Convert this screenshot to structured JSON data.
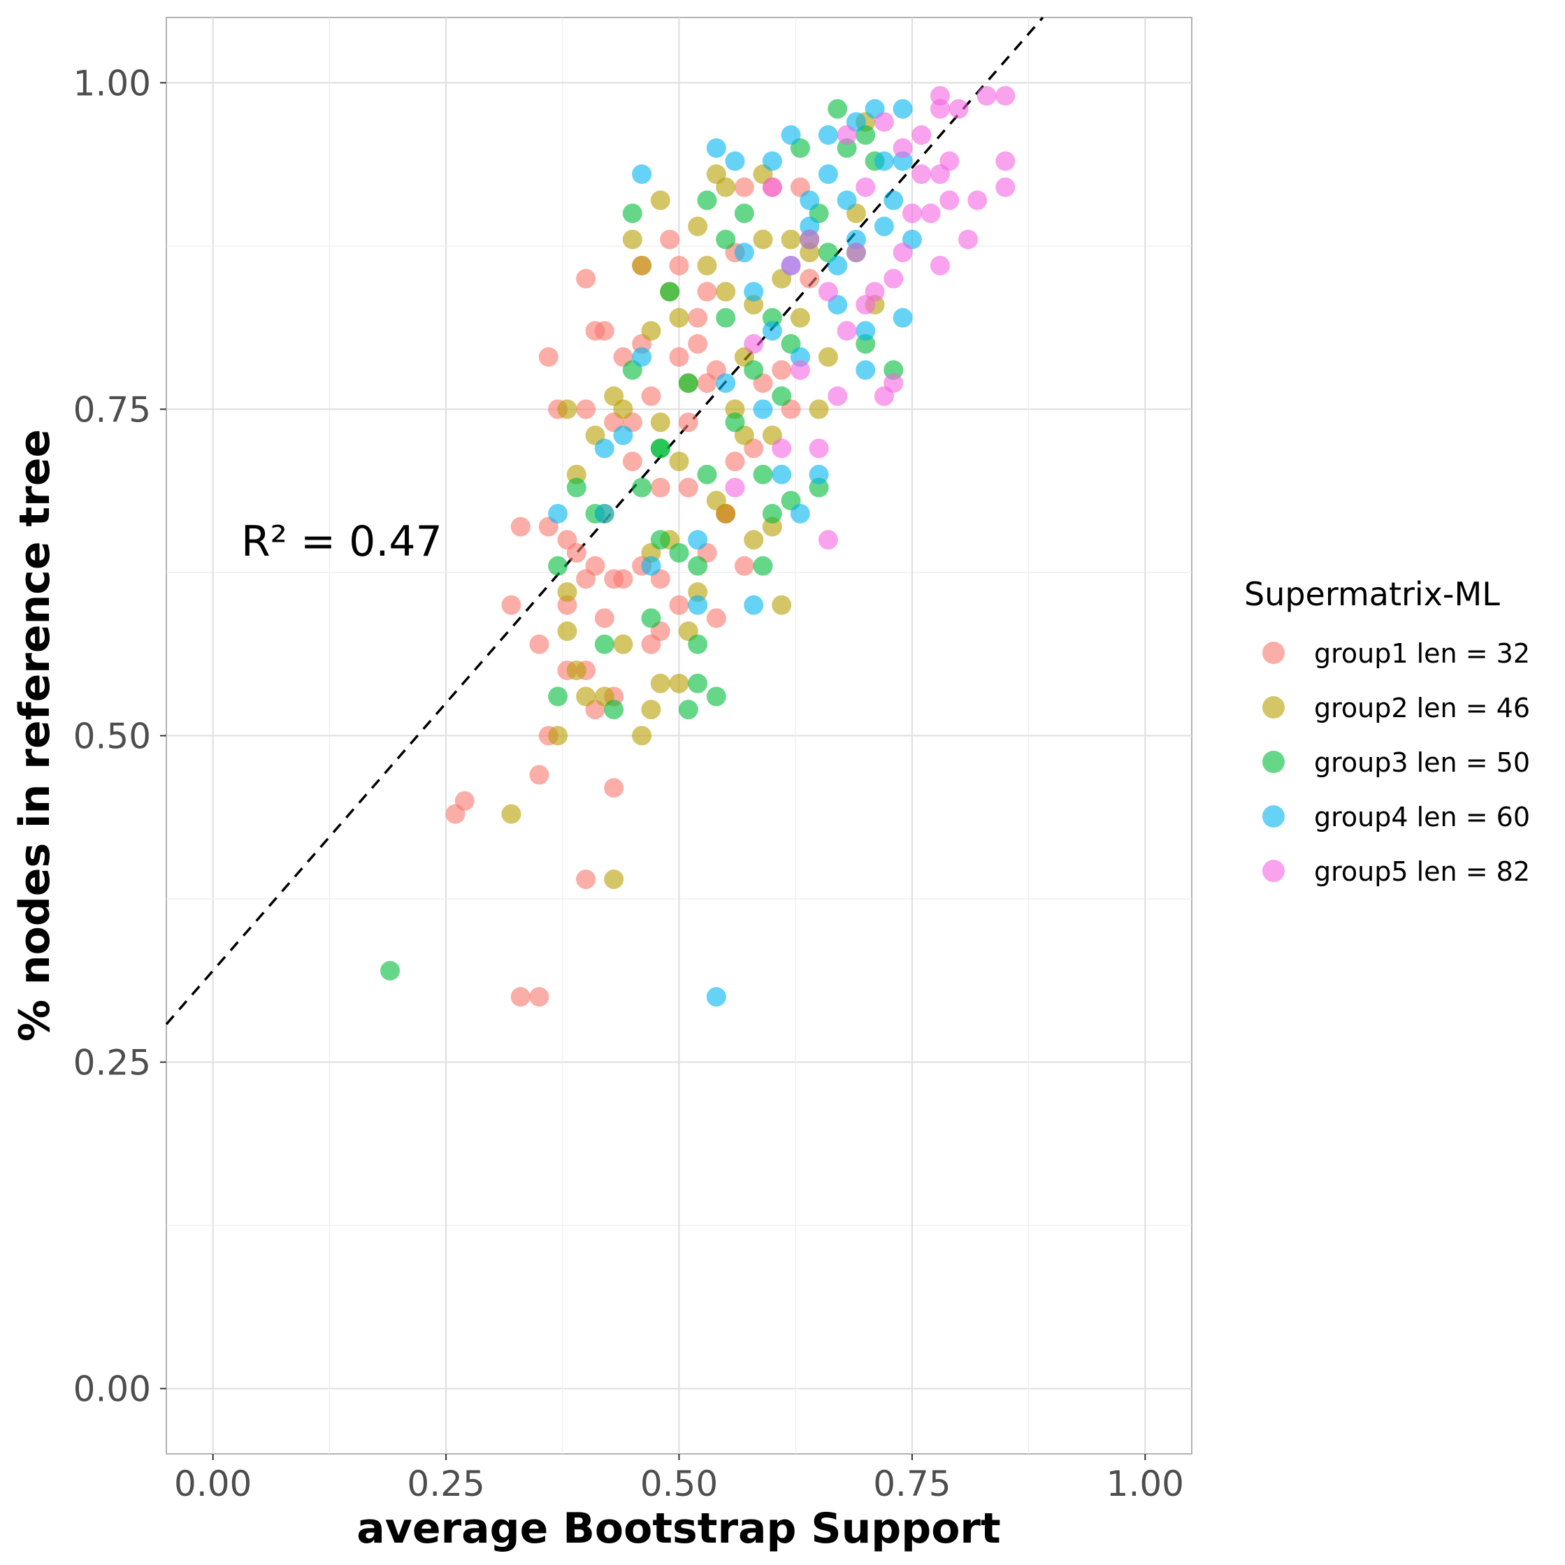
{
  "chart_data": {
    "type": "scatter",
    "xlabel": "average Bootstrap Support",
    "ylabel": "% nodes in reference tree",
    "xlim": [
      -0.05,
      1.05
    ],
    "ylim": [
      -0.05,
      1.05
    ],
    "x_ticks": [
      "0.00",
      "0.25",
      "0.50",
      "0.75",
      "1.00"
    ],
    "y_ticks": [
      "0.00",
      "0.25",
      "0.50",
      "0.75",
      "1.00"
    ],
    "grid": true,
    "legend_title": "Supermatrix-ML",
    "legend_position": "right",
    "annotation": "R² = 0.47",
    "reference_line": {
      "style": "dashed",
      "intercept": 0.32,
      "slope": 0.82
    },
    "series": [
      {
        "name": "group1 len = 32",
        "color": "#F8766D",
        "points": [
          [
            0.26,
            0.44
          ],
          [
            0.27,
            0.45
          ],
          [
            0.33,
            0.3
          ],
          [
            0.35,
            0.3
          ],
          [
            0.35,
            0.47
          ],
          [
            0.36,
            0.5
          ],
          [
            0.4,
            0.39
          ],
          [
            0.43,
            0.46
          ],
          [
            0.32,
            0.6
          ],
          [
            0.35,
            0.57
          ],
          [
            0.38,
            0.55
          ],
          [
            0.38,
            0.6
          ],
          [
            0.4,
            0.55
          ],
          [
            0.41,
            0.52
          ],
          [
            0.42,
            0.59
          ],
          [
            0.43,
            0.53
          ],
          [
            0.33,
            0.66
          ],
          [
            0.36,
            0.66
          ],
          [
            0.38,
            0.65
          ],
          [
            0.39,
            0.64
          ],
          [
            0.4,
            0.62
          ],
          [
            0.41,
            0.63
          ],
          [
            0.43,
            0.62
          ],
          [
            0.44,
            0.62
          ],
          [
            0.36,
            0.79
          ],
          [
            0.37,
            0.75
          ],
          [
            0.4,
            0.75
          ],
          [
            0.41,
            0.81
          ],
          [
            0.42,
            0.81
          ],
          [
            0.4,
            0.85
          ],
          [
            0.43,
            0.74
          ],
          [
            0.44,
            0.79
          ],
          [
            0.45,
            0.71
          ],
          [
            0.45,
            0.74
          ],
          [
            0.46,
            0.8
          ],
          [
            0.46,
            0.86
          ],
          [
            0.47,
            0.76
          ],
          [
            0.48,
            0.69
          ],
          [
            0.48,
            0.62
          ],
          [
            0.49,
            0.88
          ],
          [
            0.47,
            0.57
          ],
          [
            0.5,
            0.6
          ],
          [
            0.5,
            0.79
          ],
          [
            0.51,
            0.69
          ],
          [
            0.51,
            0.74
          ],
          [
            0.52,
            0.82
          ],
          [
            0.53,
            0.64
          ],
          [
            0.54,
            0.78
          ],
          [
            0.54,
            0.59
          ],
          [
            0.55,
            0.67
          ],
          [
            0.56,
            0.71
          ],
          [
            0.57,
            0.63
          ],
          [
            0.58,
            0.72
          ],
          [
            0.59,
            0.77
          ],
          [
            0.6,
            0.92
          ],
          [
            0.61,
            0.78
          ],
          [
            0.62,
            0.75
          ],
          [
            0.63,
            0.92
          ],
          [
            0.64,
            0.85
          ],
          [
            0.52,
            0.8
          ],
          [
            0.53,
            0.84
          ],
          [
            0.56,
            0.87
          ],
          [
            0.57,
            0.92
          ],
          [
            0.48,
            0.58
          ],
          [
            0.46,
            0.63
          ],
          [
            0.5,
            0.86
          ],
          [
            0.53,
            0.77
          ],
          [
            0.55,
            0.67
          ]
        ]
      },
      {
        "name": "group2 len = 46",
        "color": "#B79F00",
        "points": [
          [
            0.32,
            0.44
          ],
          [
            0.43,
            0.39
          ],
          [
            0.37,
            0.5
          ],
          [
            0.38,
            0.58
          ],
          [
            0.39,
            0.55
          ],
          [
            0.4,
            0.53
          ],
          [
            0.42,
            0.53
          ],
          [
            0.44,
            0.57
          ],
          [
            0.46,
            0.5
          ],
          [
            0.47,
            0.52
          ],
          [
            0.48,
            0.54
          ],
          [
            0.5,
            0.54
          ],
          [
            0.38,
            0.61
          ],
          [
            0.39,
            0.7
          ],
          [
            0.38,
            0.75
          ],
          [
            0.41,
            0.73
          ],
          [
            0.42,
            0.67
          ],
          [
            0.43,
            0.76
          ],
          [
            0.44,
            0.75
          ],
          [
            0.45,
            0.88
          ],
          [
            0.46,
            0.86
          ],
          [
            0.47,
            0.81
          ],
          [
            0.48,
            0.91
          ],
          [
            0.48,
            0.74
          ],
          [
            0.49,
            0.84
          ],
          [
            0.5,
            0.71
          ],
          [
            0.5,
            0.82
          ],
          [
            0.51,
            0.77
          ],
          [
            0.52,
            0.89
          ],
          [
            0.53,
            0.86
          ],
          [
            0.54,
            0.93
          ],
          [
            0.55,
            0.92
          ],
          [
            0.55,
            0.67
          ],
          [
            0.56,
            0.75
          ],
          [
            0.57,
            0.79
          ],
          [
            0.58,
            0.83
          ],
          [
            0.58,
            0.65
          ],
          [
            0.59,
            0.88
          ],
          [
            0.6,
            0.73
          ],
          [
            0.6,
            0.66
          ],
          [
            0.61,
            0.6
          ],
          [
            0.61,
            0.85
          ],
          [
            0.62,
            0.88
          ],
          [
            0.63,
            0.82
          ],
          [
            0.64,
            0.87
          ],
          [
            0.65,
            0.75
          ],
          [
            0.66,
            0.79
          ],
          [
            0.69,
            0.9
          ],
          [
            0.7,
            0.97
          ],
          [
            0.71,
            0.83
          ],
          [
            0.47,
            0.64
          ],
          [
            0.49,
            0.65
          ],
          [
            0.51,
            0.58
          ],
          [
            0.52,
            0.61
          ],
          [
            0.54,
            0.68
          ],
          [
            0.55,
            0.84
          ],
          [
            0.57,
            0.73
          ],
          [
            0.59,
            0.93
          ]
        ]
      },
      {
        "name": "group3 len = 50",
        "color": "#00BA38",
        "points": [
          [
            0.19,
            0.32
          ],
          [
            0.37,
            0.53
          ],
          [
            0.37,
            0.63
          ],
          [
            0.39,
            0.69
          ],
          [
            0.41,
            0.67
          ],
          [
            0.42,
            0.57
          ],
          [
            0.43,
            0.52
          ],
          [
            0.45,
            0.78
          ],
          [
            0.46,
            0.69
          ],
          [
            0.47,
            0.59
          ],
          [
            0.48,
            0.65
          ],
          [
            0.48,
            0.72
          ],
          [
            0.49,
            0.84
          ],
          [
            0.5,
            0.64
          ],
          [
            0.51,
            0.52
          ],
          [
            0.52,
            0.54
          ],
          [
            0.52,
            0.63
          ],
          [
            0.52,
            0.57
          ],
          [
            0.53,
            0.7
          ],
          [
            0.53,
            0.91
          ],
          [
            0.54,
            0.53
          ],
          [
            0.55,
            0.82
          ],
          [
            0.56,
            0.74
          ],
          [
            0.57,
            0.9
          ],
          [
            0.58,
            0.78
          ],
          [
            0.59,
            0.7
          ],
          [
            0.59,
            0.63
          ],
          [
            0.6,
            0.67
          ],
          [
            0.6,
            0.82
          ],
          [
            0.61,
            0.76
          ],
          [
            0.62,
            0.68
          ],
          [
            0.62,
            0.8
          ],
          [
            0.63,
            0.95
          ],
          [
            0.64,
            0.88
          ],
          [
            0.65,
            0.69
          ],
          [
            0.65,
            0.9
          ],
          [
            0.66,
            0.87
          ],
          [
            0.67,
            0.98
          ],
          [
            0.68,
            0.95
          ],
          [
            0.69,
            0.87
          ],
          [
            0.7,
            0.96
          ],
          [
            0.7,
            0.8
          ],
          [
            0.71,
            0.94
          ],
          [
            0.73,
            0.78
          ],
          [
            0.45,
            0.9
          ],
          [
            0.48,
            0.72
          ],
          [
            0.51,
            0.77
          ],
          [
            0.55,
            0.88
          ]
        ]
      },
      {
        "name": "group4 len = 60",
        "color": "#00B4EF",
        "points": [
          [
            0.54,
            0.3
          ],
          [
            0.37,
            0.67
          ],
          [
            0.42,
            0.67
          ],
          [
            0.42,
            0.72
          ],
          [
            0.44,
            0.73
          ],
          [
            0.46,
            0.79
          ],
          [
            0.46,
            0.93
          ],
          [
            0.47,
            0.63
          ],
          [
            0.52,
            0.6
          ],
          [
            0.52,
            0.65
          ],
          [
            0.54,
            0.95
          ],
          [
            0.55,
            0.77
          ],
          [
            0.56,
            0.94
          ],
          [
            0.57,
            0.87
          ],
          [
            0.58,
            0.6
          ],
          [
            0.58,
            0.84
          ],
          [
            0.59,
            0.75
          ],
          [
            0.6,
            0.81
          ],
          [
            0.6,
            0.94
          ],
          [
            0.61,
            0.7
          ],
          [
            0.62,
            0.96
          ],
          [
            0.63,
            0.67
          ],
          [
            0.63,
            0.79
          ],
          [
            0.64,
            0.91
          ],
          [
            0.65,
            0.7
          ],
          [
            0.66,
            0.93
          ],
          [
            0.66,
            0.96
          ],
          [
            0.67,
            0.83
          ],
          [
            0.68,
            0.91
          ],
          [
            0.69,
            0.97
          ],
          [
            0.69,
            0.88
          ],
          [
            0.7,
            0.78
          ],
          [
            0.7,
            0.81
          ],
          [
            0.71,
            0.98
          ],
          [
            0.72,
            0.89
          ],
          [
            0.73,
            0.91
          ],
          [
            0.74,
            0.98
          ],
          [
            0.74,
            0.82
          ],
          [
            0.74,
            0.94
          ],
          [
            0.75,
            0.88
          ],
          [
            0.62,
            0.86
          ],
          [
            0.64,
            0.89
          ],
          [
            0.67,
            0.86
          ],
          [
            0.72,
            0.94
          ]
        ]
      },
      {
        "name": "group5 len = 82",
        "color": "#F564E3",
        "points": [
          [
            0.56,
            0.69
          ],
          [
            0.58,
            0.8
          ],
          [
            0.61,
            0.72
          ],
          [
            0.62,
            0.86
          ],
          [
            0.63,
            0.78
          ],
          [
            0.65,
            0.72
          ],
          [
            0.66,
            0.65
          ],
          [
            0.66,
            0.84
          ],
          [
            0.67,
            0.76
          ],
          [
            0.68,
            0.81
          ],
          [
            0.69,
            0.87
          ],
          [
            0.7,
            0.83
          ],
          [
            0.71,
            0.84
          ],
          [
            0.72,
            0.76
          ],
          [
            0.72,
            0.97
          ],
          [
            0.73,
            0.77
          ],
          [
            0.73,
            0.85
          ],
          [
            0.74,
            0.87
          ],
          [
            0.74,
            0.95
          ],
          [
            0.75,
            0.9
          ],
          [
            0.76,
            0.93
          ],
          [
            0.77,
            0.9
          ],
          [
            0.78,
            0.86
          ],
          [
            0.78,
            0.98
          ],
          [
            0.78,
            0.93
          ],
          [
            0.79,
            0.94
          ],
          [
            0.79,
            0.91
          ],
          [
            0.8,
            0.98
          ],
          [
            0.81,
            0.88
          ],
          [
            0.82,
            0.91
          ],
          [
            0.83,
            0.99
          ],
          [
            0.85,
            0.99
          ],
          [
            0.85,
            0.92
          ],
          [
            0.85,
            0.94
          ],
          [
            0.78,
            0.99
          ],
          [
            0.76,
            0.96
          ],
          [
            0.7,
            0.92
          ],
          [
            0.68,
            0.96
          ],
          [
            0.6,
            0.92
          ],
          [
            0.64,
            0.88
          ]
        ]
      }
    ]
  }
}
